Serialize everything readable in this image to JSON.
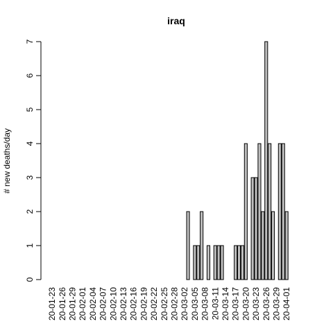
{
  "chart_data": {
    "type": "bar",
    "title": "iraq",
    "xlabel": "",
    "ylabel": "# new deaths/day",
    "ylim": [
      0,
      7
    ],
    "yticks": [
      0,
      1,
      2,
      3,
      4,
      5,
      6,
      7
    ],
    "categories": [
      "20-01-23",
      "20-01-24",
      "20-01-25",
      "20-01-26",
      "20-01-27",
      "20-01-28",
      "20-01-29",
      "20-01-30",
      "20-01-31",
      "20-02-01",
      "20-02-02",
      "20-02-03",
      "20-02-04",
      "20-02-05",
      "20-02-06",
      "20-02-07",
      "20-02-08",
      "20-02-09",
      "20-02-10",
      "20-02-11",
      "20-02-12",
      "20-02-13",
      "20-02-14",
      "20-02-15",
      "20-02-16",
      "20-02-17",
      "20-02-18",
      "20-02-19",
      "20-02-20",
      "20-02-21",
      "20-02-22",
      "20-02-23",
      "20-02-24",
      "20-02-25",
      "20-02-26",
      "20-02-27",
      "20-02-28",
      "20-02-29",
      "20-03-01",
      "20-03-02",
      "20-03-03",
      "20-03-04",
      "20-03-05",
      "20-03-06",
      "20-03-07",
      "20-03-08",
      "20-03-09",
      "20-03-10",
      "20-03-11",
      "20-03-12",
      "20-03-13",
      "20-03-14",
      "20-03-15",
      "20-03-16",
      "20-03-17",
      "20-03-18",
      "20-03-19",
      "20-03-20",
      "20-03-21",
      "20-03-22",
      "20-03-23",
      "20-03-24",
      "20-03-25",
      "20-03-26",
      "20-03-27",
      "20-03-28",
      "20-03-29",
      "20-03-30",
      "20-03-31",
      "20-04-01"
    ],
    "values": [
      0,
      0,
      0,
      0,
      0,
      0,
      0,
      0,
      0,
      0,
      0,
      0,
      0,
      0,
      0,
      0,
      0,
      0,
      0,
      0,
      0,
      0,
      0,
      0,
      0,
      0,
      0,
      0,
      0,
      0,
      0,
      0,
      0,
      0,
      0,
      0,
      0,
      0,
      0,
      0,
      2,
      0,
      1,
      1,
      2,
      0,
      1,
      0,
      1,
      1,
      1,
      0,
      0,
      0,
      1,
      1,
      1,
      4,
      0,
      3,
      3,
      4,
      2,
      7,
      4,
      2,
      0,
      4,
      4,
      2
    ],
    "xtick_labels": [
      "20-01-23",
      "20-01-26",
      "20-01-29",
      "20-02-01",
      "20-02-04",
      "20-02-07",
      "20-02-10",
      "20-02-13",
      "20-02-16",
      "20-02-19",
      "20-02-22",
      "20-02-25",
      "20-02-28",
      "20-03-02",
      "20-03-05",
      "20-03-08",
      "20-03-11",
      "20-03-14",
      "20-03-17",
      "20-03-20",
      "20-03-23",
      "20-03-26",
      "20-03-29",
      "20-04-01"
    ],
    "colors": {
      "bar_fill": "#bebebe",
      "bar_stroke": "#000000"
    }
  }
}
